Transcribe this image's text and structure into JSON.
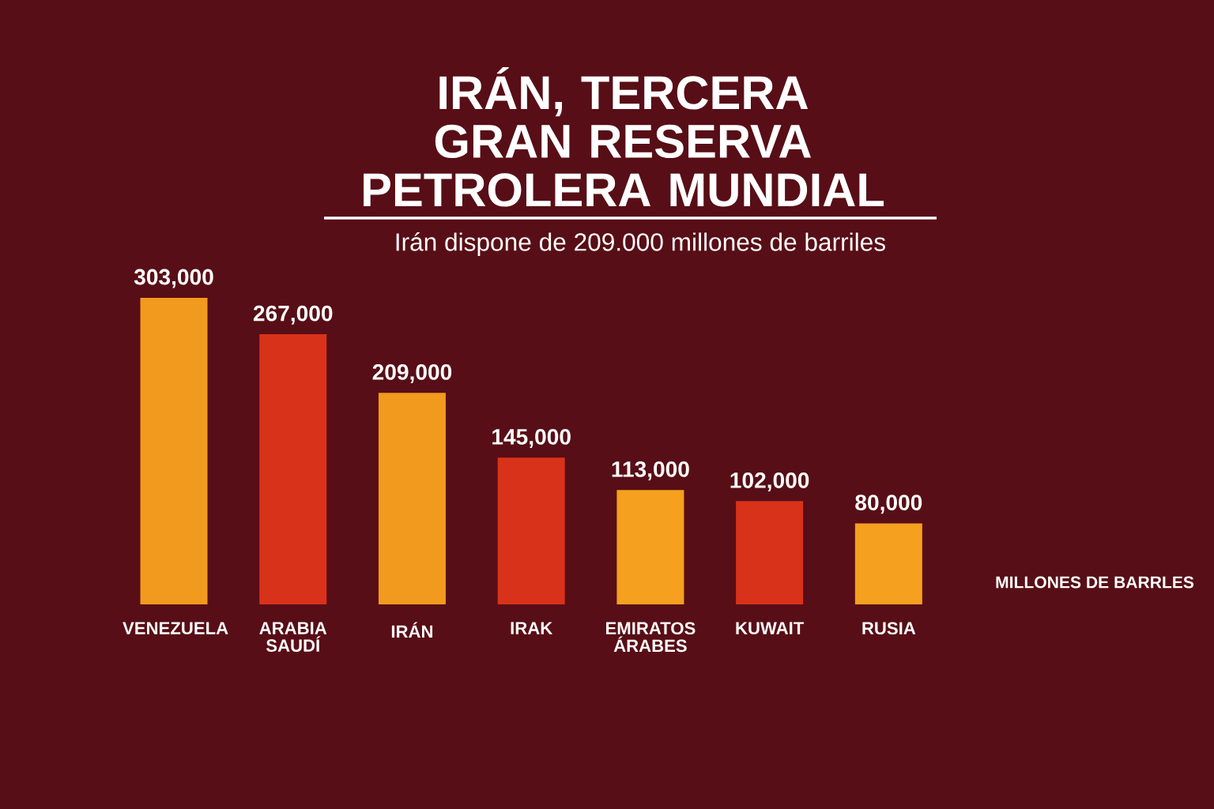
{
  "chart_data": {
    "type": "bar",
    "title": "IRÁN, TERCERA GRAN RESERVA PETROLERA MUNDIAL",
    "subtitle": "Irán dispone de 209.000 millones de barriles",
    "categories": [
      "VENEZUELA",
      "ARABIA SAUDÍ",
      "IRÁN",
      "IRAK",
      "EMIRATOS ÁRABES",
      "KUWAIT",
      "RUSIA"
    ],
    "values": [
      303000,
      267000,
      209000,
      145000,
      113000,
      102000,
      80000
    ],
    "colors": [
      "#f29a1e",
      "#d9321a",
      "#f29a1e",
      "#d9321a",
      "#f5a01e",
      "#d9321a",
      "#f5a01e"
    ],
    "value_labels": [
      "303,000",
      "267,000",
      "209,000",
      "145,000",
      "113,000",
      "102,000",
      "80,000"
    ],
    "annotations": [
      "MILLONES DE BARRLES"
    ]
  }
}
